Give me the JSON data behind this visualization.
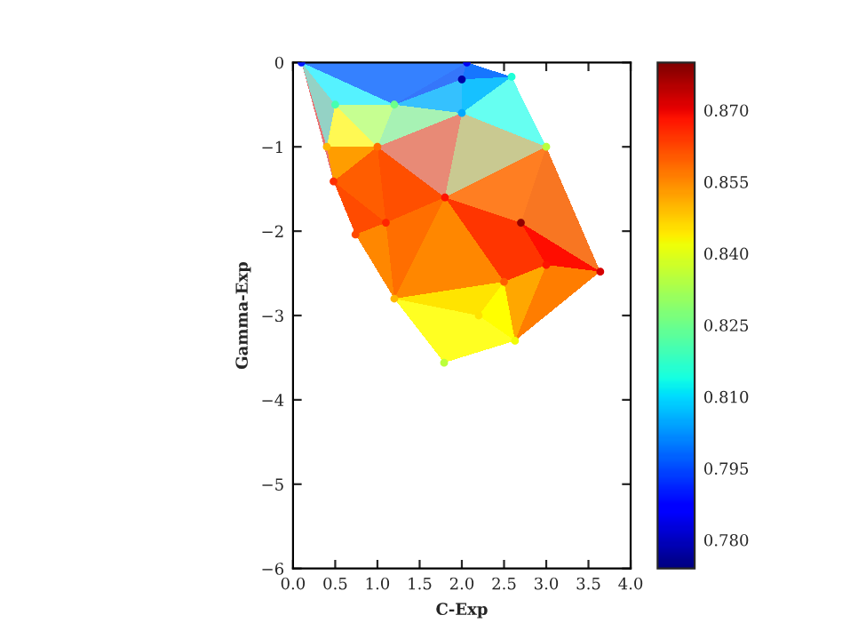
{
  "chart_data": {
    "type": "scatter",
    "xlabel": "C-Exp",
    "ylabel": "Gamma-Exp",
    "x": [
      0.1,
      2.06,
      2.59,
      3.64,
      2.63,
      1.79,
      0.74,
      0.48,
      2.0,
      2.0,
      0.5,
      1.2,
      1.0,
      0.4,
      3.0,
      2.7,
      1.8,
      1.1,
      3.0,
      2.5,
      1.2,
      2.2
    ],
    "values": [
      0,
      0,
      -0.17,
      -2.48,
      -3.3,
      -3.56,
      -2.04,
      -1.41,
      -0.2,
      -0.6,
      -0.5,
      -0.5,
      -1.0,
      -1.0,
      -1.0,
      -1.9,
      -1.6,
      -1.9,
      -2.4,
      -2.6,
      -2.8,
      -3.0
    ],
    "cvalues": [
      0.79,
      0.785,
      0.815,
      0.872,
      0.842,
      0.835,
      0.862,
      0.865,
      0.778,
      0.805,
      0.82,
      0.825,
      0.858,
      0.85,
      0.835,
      0.878,
      0.868,
      0.866,
      0.868,
      0.86,
      0.85,
      0.845
    ],
    "xlim": [
      0.0,
      4.0
    ],
    "ylim": [
      -6,
      0
    ],
    "xticks": [
      {
        "value": 0,
        "label": "0.0"
      },
      {
        "value": 0.5,
        "label": "0.5"
      },
      {
        "value": 1,
        "label": "1.0"
      },
      {
        "value": 1.5,
        "label": "1.5"
      },
      {
        "value": 2,
        "label": "2.0"
      },
      {
        "value": 2.5,
        "label": "2.5"
      },
      {
        "value": 3,
        "label": "3.0"
      },
      {
        "value": 3.5,
        "label": "3.5"
      },
      {
        "value": 4,
        "label": "4.0"
      }
    ],
    "yticks": [
      {
        "value": -6,
        "label": "−6"
      },
      {
        "value": -5,
        "label": "−5"
      },
      {
        "value": -4,
        "label": "−4"
      },
      {
        "value": -3,
        "label": "−3"
      },
      {
        "value": -2,
        "label": "−2"
      },
      {
        "value": -1,
        "label": "−1"
      },
      0
    ],
    "clim": [
      0.774,
      0.88
    ],
    "cticks": [
      {
        "value": 0.78,
        "label": "0.780"
      },
      {
        "value": 0.795,
        "label": "0.795"
      },
      {
        "value": 0.81,
        "label": "0.810"
      },
      {
        "value": 0.825,
        "label": "0.825"
      },
      {
        "value": 0.84,
        "label": "0.840"
      },
      {
        "value": 0.855,
        "label": "0.855"
      },
      {
        "value": 0.87,
        "label": "0.870"
      }
    ],
    "grid": false
  }
}
